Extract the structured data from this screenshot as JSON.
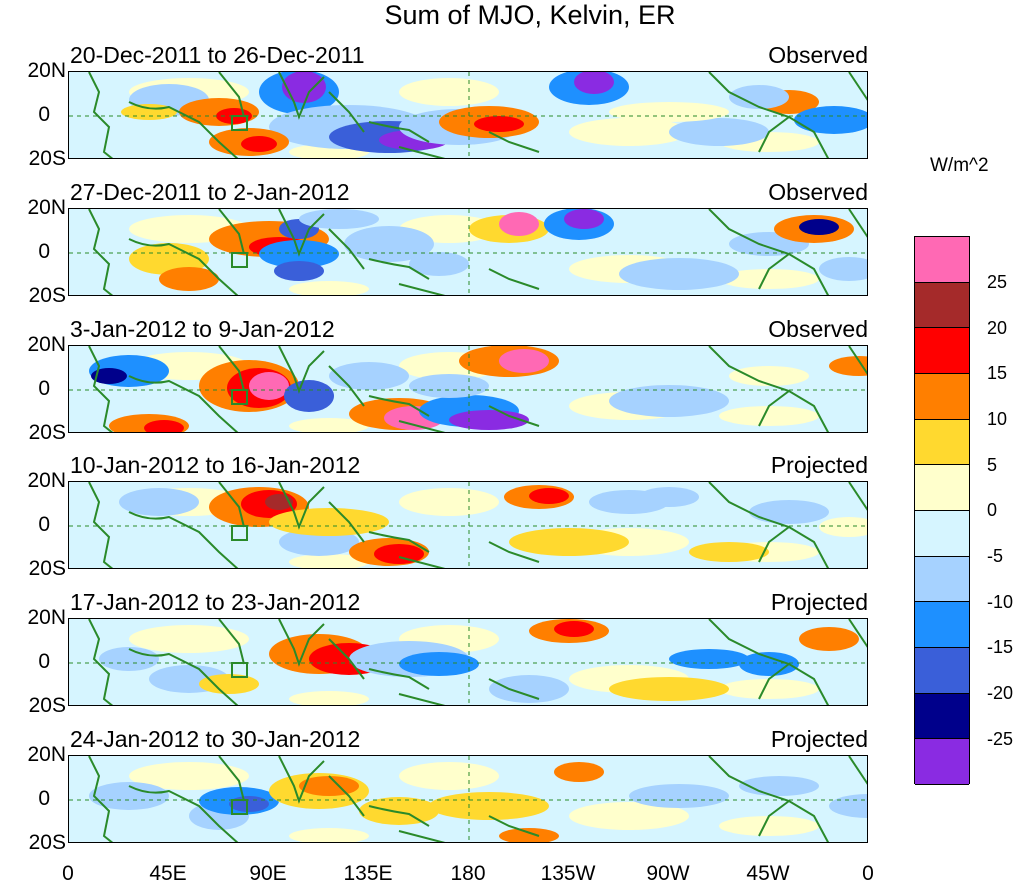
{
  "title": "Sum of MJO, Kelvin, ER",
  "panels": [
    {
      "date_range": "20-Dec-2011 to 26-Dec-2011",
      "status": "Observed"
    },
    {
      "date_range": "27-Dec-2011 to 2-Jan-2012",
      "status": "Observed"
    },
    {
      "date_range": "3-Jan-2012 to 9-Jan-2012",
      "status": "Observed"
    },
    {
      "date_range": "10-Jan-2012 to 16-Jan-2012",
      "status": "Projected"
    },
    {
      "date_range": "17-Jan-2012 to 23-Jan-2012",
      "status": "Projected"
    },
    {
      "date_range": "24-Jan-2012 to 30-Jan-2012",
      "status": "Projected"
    }
  ],
  "lat_labels": [
    "20N",
    "0",
    "20S"
  ],
  "lon_labels": [
    "0",
    "45E",
    "90E",
    "135E",
    "180",
    "135W",
    "90W",
    "45W",
    "0"
  ],
  "colorbar": {
    "unit": "W/m^2",
    "levels": [
      "25",
      "20",
      "15",
      "10",
      "5",
      "0",
      "-5",
      "-10",
      "-15",
      "-20",
      "-25"
    ],
    "colors": [
      "#ff69b4",
      "#a52a2a",
      "#ff0000",
      "#ff7f00",
      "#ffd92f",
      "#ffffcc",
      "#d6f5ff",
      "#a6d2ff",
      "#1e90ff",
      "#3a5fd9",
      "#00008b",
      "#8a2be2"
    ]
  },
  "colors": {
    "coast": "#2a8a2a",
    "frame": "#000000"
  }
}
